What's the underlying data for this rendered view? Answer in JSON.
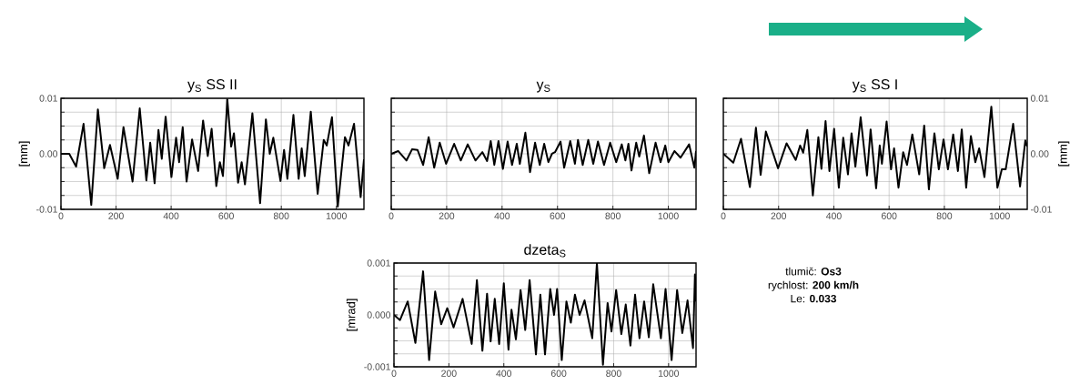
{
  "chart_data": [
    {
      "type": "line",
      "title": "y$_{S}$ SS II",
      "ylabel": "[mm]",
      "color": "#000000",
      "grid": true,
      "x": [
        0,
        30,
        55,
        82,
        110,
        134,
        157,
        178,
        206,
        227,
        260,
        286,
        310,
        324,
        340,
        354,
        366,
        380,
        401,
        418,
        429,
        442,
        456,
        476,
        498,
        516,
        533,
        547,
        564,
        577,
        588,
        604,
        618,
        628,
        643,
        656,
        668,
        695,
        723,
        744,
        758,
        771,
        797,
        810,
        822,
        844,
        863,
        874,
        885,
        907,
        932,
        954,
        965,
        984,
        1005,
        1031,
        1044,
        1064,
        1088,
        1100
      ],
      "values": [
        0,
        0,
        -0.0023,
        0.0054,
        -0.0092,
        0.008,
        -0.0026,
        0.0016,
        -0.0045,
        0.0048,
        -0.005,
        0.0082,
        -0.0048,
        0.002,
        -0.0053,
        0.0043,
        -0.0009,
        0.0067,
        -0.0042,
        0.0029,
        -0.0015,
        0.0048,
        -0.005,
        0.0026,
        -0.0031,
        0.006,
        -0.0004,
        0.0045,
        -0.0058,
        -0.0015,
        -0.004,
        0.0098,
        0.0013,
        0.0037,
        -0.0052,
        -0.0015,
        -0.0055,
        0.0073,
        -0.0089,
        0.0062,
        0,
        0.0029,
        -0.0049,
        0.0007,
        -0.0045,
        0.007,
        -0.0045,
        0.001,
        -0.004,
        0.0076,
        -0.0072,
        0.0025,
        0.0015,
        0.0066,
        -0.0095,
        0.003,
        0.0015,
        0.0054,
        -0.0078,
        -0.001
      ],
      "xlim": [
        0,
        1100
      ],
      "xticks": [
        0,
        200,
        400,
        600,
        800,
        1000
      ],
      "ylim": [
        -0.01,
        0.01
      ],
      "yticks": [
        -0.01,
        {
          "value": -0.0075,
          "label": null
        },
        {
          "value": -0.005,
          "label": null
        },
        {
          "value": -0.0025,
          "label": null
        },
        {
          "value": 0,
          "label": "0.00"
        },
        {
          "value": 0.0025,
          "label": null
        },
        {
          "value": 0.005,
          "label": null
        },
        {
          "value": 0.0075,
          "label": null
        },
        0.01
      ]
    },
    {
      "type": "line",
      "title": "y$_{S}$",
      "color": "#000000",
      "grid": true,
      "tick_labels": "x",
      "x": [
        0,
        25,
        55,
        75,
        95,
        115,
        135,
        155,
        175,
        198,
        227,
        251,
        276,
        304,
        329,
        346,
        359,
        372,
        387,
        403,
        420,
        436,
        453,
        464,
        484,
        501,
        519,
        536,
        552,
        567,
        580,
        591,
        611,
        624,
        646,
        663,
        674,
        691,
        711,
        729,
        746,
        768,
        790,
        812,
        832,
        845,
        856,
        867,
        884,
        895,
        912,
        931,
        954,
        972,
        989,
        1000,
        1022,
        1044,
        1075,
        1094,
        1100
      ],
      "values": [
        0,
        0.0005,
        -0.0012,
        0.0008,
        0.0007,
        -0.002,
        0.003,
        -0.0025,
        0.002,
        -0.0018,
        0.0018,
        -0.0012,
        0.0017,
        -0.0012,
        0.0003,
        -0.0013,
        0.0023,
        -0.002,
        0.0023,
        -0.0027,
        0.0022,
        -0.002,
        0.0018,
        -0.0018,
        0.0038,
        -0.0033,
        0.002,
        -0.002,
        0.0018,
        -0.0015,
        0,
        0.0003,
        0.0022,
        -0.0025,
        0.0023,
        -0.0018,
        0.0025,
        -0.002,
        0.0025,
        -0.0018,
        0.0022,
        -0.002,
        0.002,
        -0.0015,
        0.0017,
        -0.0012,
        0.0018,
        -0.003,
        0.002,
        -0.0005,
        0.0033,
        -0.0035,
        0.002,
        -0.0015,
        0.0015,
        -0.0015,
        0.0005,
        -0.0007,
        0.0017,
        -0.0025,
        0.0005
      ],
      "xlim": [
        0,
        1100
      ],
      "xticks": [
        0,
        200,
        400,
        600,
        800,
        1000
      ],
      "ylim": [
        -0.01,
        0.01
      ],
      "yticks": [
        {
          "value": -0.01,
          "label": null
        },
        {
          "value": -0.0075,
          "label": null
        },
        {
          "value": -0.005,
          "label": null
        },
        {
          "value": -0.0025,
          "label": null
        },
        {
          "value": 0,
          "label": null
        },
        {
          "value": 0.0025,
          "label": null
        },
        {
          "value": 0.005,
          "label": null
        },
        {
          "value": 0.0075,
          "label": null
        },
        {
          "value": 0.01,
          "label": null
        }
      ]
    },
    {
      "type": "line",
      "title": "y$_{S}$ SS I",
      "ylabel": "[mm]",
      "color": "#000000",
      "grid": true,
      "x": [
        0,
        36,
        64,
        96,
        118,
        135,
        154,
        198,
        229,
        262,
        278,
        289,
        304,
        324,
        344,
        355,
        370,
        384,
        401,
        418,
        434,
        451,
        464,
        478,
        497,
        520,
        533,
        553,
        566,
        574,
        591,
        607,
        618,
        634,
        651,
        665,
        684,
        709,
        727,
        744,
        764,
        780,
        797,
        813,
        832,
        849,
        863,
        879,
        896,
        912,
        926,
        945,
        970,
        992,
        1008,
        1022,
        1049,
        1074,
        1093,
        1100
      ],
      "values": [
        0,
        -0.0016,
        0.0027,
        -0.006,
        0.0047,
        -0.0038,
        0.004,
        -0.0026,
        0.0019,
        -0.0011,
        0.0015,
        0.0002,
        0.0043,
        -0.0075,
        0.003,
        -0.0027,
        0.0059,
        -0.0031,
        0.0045,
        -0.0061,
        0.0029,
        -0.0037,
        0.0037,
        -0.0023,
        0.0066,
        -0.0039,
        0.0044,
        -0.0062,
        0.0015,
        -0.0018,
        0.0058,
        -0.0028,
        0.001,
        -0.0061,
        0.0003,
        -0.002,
        0.0035,
        -0.0037,
        0.0051,
        -0.0064,
        0.0037,
        -0.0028,
        0.0026,
        -0.0028,
        0.0035,
        -0.0031,
        0.0044,
        -0.0061,
        0.0032,
        -0.0015,
        0.001,
        -0.0042,
        0.0085,
        -0.0061,
        -0.0028,
        -0.0028,
        0.0054,
        -0.0059,
        0.0024,
        0.0013
      ],
      "xlim": [
        0,
        1100
      ],
      "xticks": [
        0,
        200,
        400,
        600,
        800,
        1000
      ],
      "ylim": [
        -0.01,
        0.01
      ],
      "yticks": [
        -0.01,
        {
          "value": -0.0075,
          "label": null
        },
        {
          "value": -0.005,
          "label": null
        },
        {
          "value": -0.0025,
          "label": null
        },
        {
          "value": 0,
          "label": "0.00"
        },
        {
          "value": 0.0025,
          "label": null
        },
        {
          "value": 0.005,
          "label": null
        },
        {
          "value": 0.0075,
          "label": null
        },
        0.01
      ]
    },
    {
      "type": "line",
      "title": "dzeta$_{S}$",
      "ylabel": "[mrad]",
      "color": "#000000",
      "grid": true,
      "x": [
        0,
        22,
        50,
        78,
        106,
        128,
        150,
        172,
        194,
        217,
        250,
        283,
        302,
        322,
        339,
        352,
        367,
        383,
        400,
        417,
        428,
        444,
        461,
        478,
        494,
        517,
        533,
        550,
        569,
        583,
        594,
        611,
        628,
        644,
        659,
        676,
        694,
        722,
        739,
        761,
        778,
        792,
        809,
        828,
        844,
        861,
        878,
        894,
        911,
        928,
        944,
        972,
        989,
        1011,
        1031,
        1050,
        1069,
        1089,
        1096,
        1100
      ],
      "values": [
        0,
        -0.0001,
        0.00026,
        -0.00054,
        0.00084,
        -0.00087,
        0.00045,
        -0.00018,
        0.00013,
        -0.00024,
        0.00031,
        -0.00056,
        0.00067,
        -0.00069,
        0.00041,
        -0.00051,
        0.00031,
        -0.00056,
        0.00061,
        -0.00067,
        0.0001,
        -0.00047,
        0.00048,
        -0.00029,
        0.00067,
        -0.00076,
        0.00039,
        -0.00076,
        0.0005,
        0,
        0.0005,
        -0.00087,
        0.00026,
        -0.00015,
        0.00039,
        0,
        0.00028,
        -0.00045,
        0.001,
        -0.00096,
        0.00023,
        -0.00032,
        0.00048,
        -0.00037,
        0.0002,
        -0.00059,
        0.00039,
        -0.00045,
        0.00026,
        -0.00043,
        0.00059,
        -0.00045,
        0.0005,
        -0.00087,
        0.00048,
        -0.00035,
        0.00028,
        -0.00064,
        0.00078,
        0.00026
      ],
      "xlim": [
        0,
        1100
      ],
      "xticks": [
        0,
        200,
        400,
        600,
        800,
        1000
      ],
      "ylim": [
        -0.001,
        0.001
      ],
      "yticks": [
        -0.001,
        {
          "value": -0.00075,
          "label": null
        },
        {
          "value": -0.0005,
          "label": null
        },
        {
          "value": -0.00025,
          "label": null
        },
        {
          "value": 0,
          "label": "0.000"
        },
        {
          "value": 0.00025,
          "label": null
        },
        {
          "value": 0.0005,
          "label": null
        },
        {
          "value": 0.00075,
          "label": null
        },
        0.001
      ]
    },
    {
      "type": "other",
      "annotations": [
        "tlumič: **Os3**",
        "rychlost: **200 km/h**",
        "Le: **0.033**"
      ]
    }
  ]
}
